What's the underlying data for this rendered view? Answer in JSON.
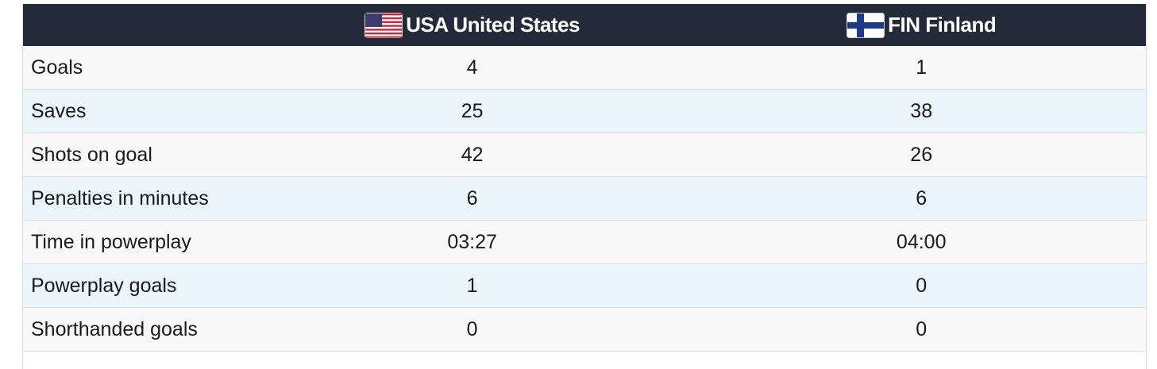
{
  "table": {
    "header": [
      "USA United States",
      "FIN Finland"
    ],
    "rows": [
      [
        "Goals",
        "4",
        "1"
      ],
      [
        "Saves",
        "25",
        "38"
      ],
      [
        "Shots on goal",
        "42",
        "26"
      ],
      [
        "Penalties in minutes",
        "6",
        "6"
      ],
      [
        "Time in powerplay",
        "03:27",
        "04:00"
      ],
      [
        "Powerplay goals",
        "1",
        "0"
      ],
      [
        "Shorthanded goals",
        "0",
        "0"
      ]
    ]
  }
}
